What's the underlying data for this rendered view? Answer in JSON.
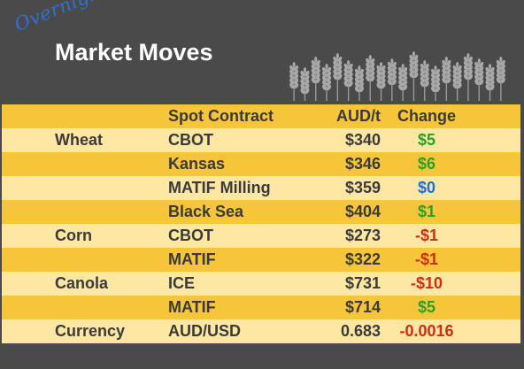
{
  "header": {
    "overnight": "Overnight",
    "title": "Market Moves"
  },
  "table": {
    "columns": [
      "Spot Contract",
      "AUD/t",
      "Change"
    ],
    "rows": [
      {
        "commodity": "Wheat",
        "contract": "CBOT",
        "price": "$340",
        "change": "$5",
        "direction": "up"
      },
      {
        "commodity": "",
        "contract": "Kansas",
        "price": "$346",
        "change": "$6",
        "direction": "up"
      },
      {
        "commodity": "",
        "contract": "MATIF Milling",
        "price": "$359",
        "change": "$0",
        "direction": "flat"
      },
      {
        "commodity": "",
        "contract": "Black Sea",
        "price": "$404",
        "change": "$1",
        "direction": "up"
      },
      {
        "commodity": "Corn",
        "contract": "CBOT",
        "price": "$273",
        "change": "-$1",
        "direction": "down"
      },
      {
        "commodity": "",
        "contract": "MATIF",
        "price": "$322",
        "change": "-$1",
        "direction": "down"
      },
      {
        "commodity": "Canola",
        "contract": "ICE",
        "price": "$731",
        "change": "-$10",
        "direction": "down"
      },
      {
        "commodity": "",
        "contract": "MATIF",
        "price": "$714",
        "change": "$5",
        "direction": "up"
      },
      {
        "commodity": "Currency",
        "contract": "AUD/USD",
        "price": "0.683",
        "change": "-0.0016",
        "direction": "down"
      }
    ]
  },
  "colors": {
    "background": "#4a4a4a",
    "row_dark": "#f7c53a",
    "row_light": "#fde7a3",
    "positive": "#2aa02a",
    "negative": "#d42a1a",
    "neutral": "#1c6fe0",
    "overnight": "#2f6fd6"
  },
  "icons": [
    "wheat-stalk-icon"
  ]
}
